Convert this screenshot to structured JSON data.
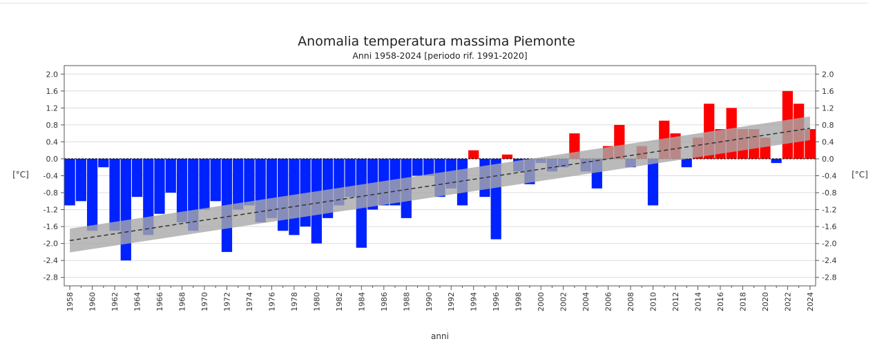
{
  "chart_data": {
    "type": "bar",
    "title": "Anomalia temperatura massima Piemonte",
    "subtitle": "Anni 1958-2024  [periodo rif. 1991-2020]",
    "xlabel": "anni",
    "ylabel": "[°C]",
    "ylabel_right": "[°C]",
    "ylim": [
      -3.0,
      2.2
    ],
    "yticks": [
      "2.0",
      "1.6",
      "1.2",
      "0.8",
      "0.4",
      "0.0",
      "-0.4",
      "-0.8",
      "-1.2",
      "-1.6",
      "-2.0",
      "-2.4",
      "-2.8"
    ],
    "ytick_values": [
      2.0,
      1.6,
      1.2,
      0.8,
      0.4,
      0.0,
      -0.4,
      -0.8,
      -1.2,
      -1.6,
      -2.0,
      -2.4,
      -2.8
    ],
    "xtick_labels": [
      "1958",
      "1960",
      "1962",
      "1964",
      "1966",
      "1968",
      "1970",
      "1972",
      "1974",
      "1976",
      "1978",
      "1980",
      "1982",
      "1984",
      "1986",
      "1988",
      "1990",
      "1992",
      "1994",
      "1996",
      "1998",
      "2000",
      "2002",
      "2004",
      "2006",
      "2008",
      "2010",
      "2012",
      "2014",
      "2016",
      "2018",
      "2020",
      "2022",
      "2024"
    ],
    "categories": [
      "1958",
      "1959",
      "1960",
      "1961",
      "1962",
      "1963",
      "1964",
      "1965",
      "1966",
      "1967",
      "1968",
      "1969",
      "1970",
      "1971",
      "1972",
      "1973",
      "1974",
      "1975",
      "1976",
      "1977",
      "1978",
      "1979",
      "1980",
      "1981",
      "1982",
      "1983",
      "1984",
      "1985",
      "1986",
      "1987",
      "1988",
      "1989",
      "1990",
      "1991",
      "1992",
      "1993",
      "1994",
      "1995",
      "1996",
      "1997",
      "1998",
      "1999",
      "2000",
      "2001",
      "2002",
      "2003",
      "2004",
      "2005",
      "2006",
      "2007",
      "2008",
      "2009",
      "2010",
      "2011",
      "2012",
      "2013",
      "2014",
      "2015",
      "2016",
      "2017",
      "2018",
      "2019",
      "2020",
      "2021",
      "2022",
      "2023",
      "2024"
    ],
    "values": [
      -1.1,
      -1.0,
      -1.7,
      -0.2,
      -1.7,
      -2.4,
      -0.9,
      -1.8,
      -1.3,
      -0.8,
      -1.5,
      -1.7,
      -1.2,
      -1.0,
      -2.2,
      -1.2,
      -1.1,
      -1.5,
      -1.4,
      -1.7,
      -1.8,
      -1.6,
      -2.0,
      -1.4,
      -1.1,
      -0.9,
      -2.1,
      -1.2,
      -1.1,
      -1.1,
      -1.4,
      -0.4,
      -0.4,
      -0.9,
      -0.7,
      -1.1,
      0.2,
      -0.9,
      -1.9,
      0.1,
      -0.3,
      -0.6,
      -0.1,
      -0.3,
      -0.2,
      0.6,
      -0.3,
      -0.7,
      0.3,
      0.8,
      -0.2,
      0.3,
      -1.1,
      0.9,
      0.6,
      -0.2,
      0.5,
      1.3,
      0.7,
      1.2,
      0.7,
      0.7,
      0.5,
      -0.1,
      1.6,
      1.3,
      0.7
    ],
    "trend": {
      "start": [
        1958,
        -1.93
      ],
      "end": [
        2024,
        0.72
      ],
      "band_halfwidth": 0.28
    },
    "colors": {
      "positive": "#ff0000",
      "negative": "#0022ff",
      "trend_band": "#a9a9a9",
      "trend_line": "#333333",
      "grid": "#dcdcdc"
    },
    "grid": true,
    "legend": "none"
  }
}
